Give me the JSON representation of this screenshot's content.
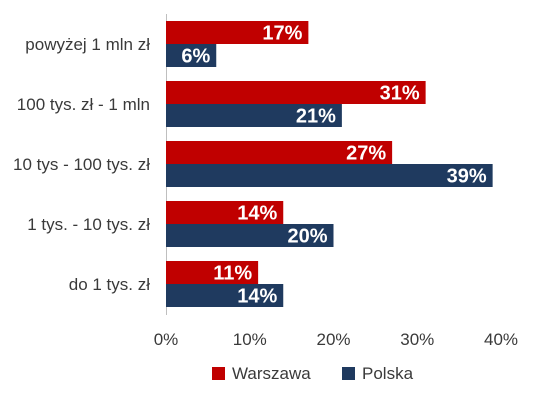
{
  "chart_data": {
    "type": "bar",
    "orientation": "horizontal",
    "title": "",
    "xlabel": "",
    "ylabel": "",
    "categories": [
      "powyżej 1 mln zł",
      "100 tys. zł - 1 mln",
      "10 tys - 100 tys. zł",
      "1 tys. - 10 tys. zł",
      "do 1 tys. zł"
    ],
    "series": [
      {
        "name": "Warszawa",
        "color": "#c00000",
        "values": [
          17,
          31,
          27,
          14,
          11
        ],
        "labels": [
          "17%",
          "31%",
          "27%",
          "14%",
          "11%"
        ]
      },
      {
        "name": "Polska",
        "color": "#1f3a5f",
        "values": [
          6,
          21,
          39,
          20,
          14
        ],
        "labels": [
          "6%",
          "21%",
          "39%",
          "20%",
          "14%"
        ]
      }
    ],
    "xlim": [
      0,
      40
    ],
    "xticks": [
      0,
      10,
      20,
      30,
      40
    ],
    "xtick_labels": [
      "0%",
      "10%",
      "20%",
      "30%",
      "40%"
    ],
    "grid": false,
    "legend_position": "bottom",
    "data_labels": "inside-end"
  }
}
